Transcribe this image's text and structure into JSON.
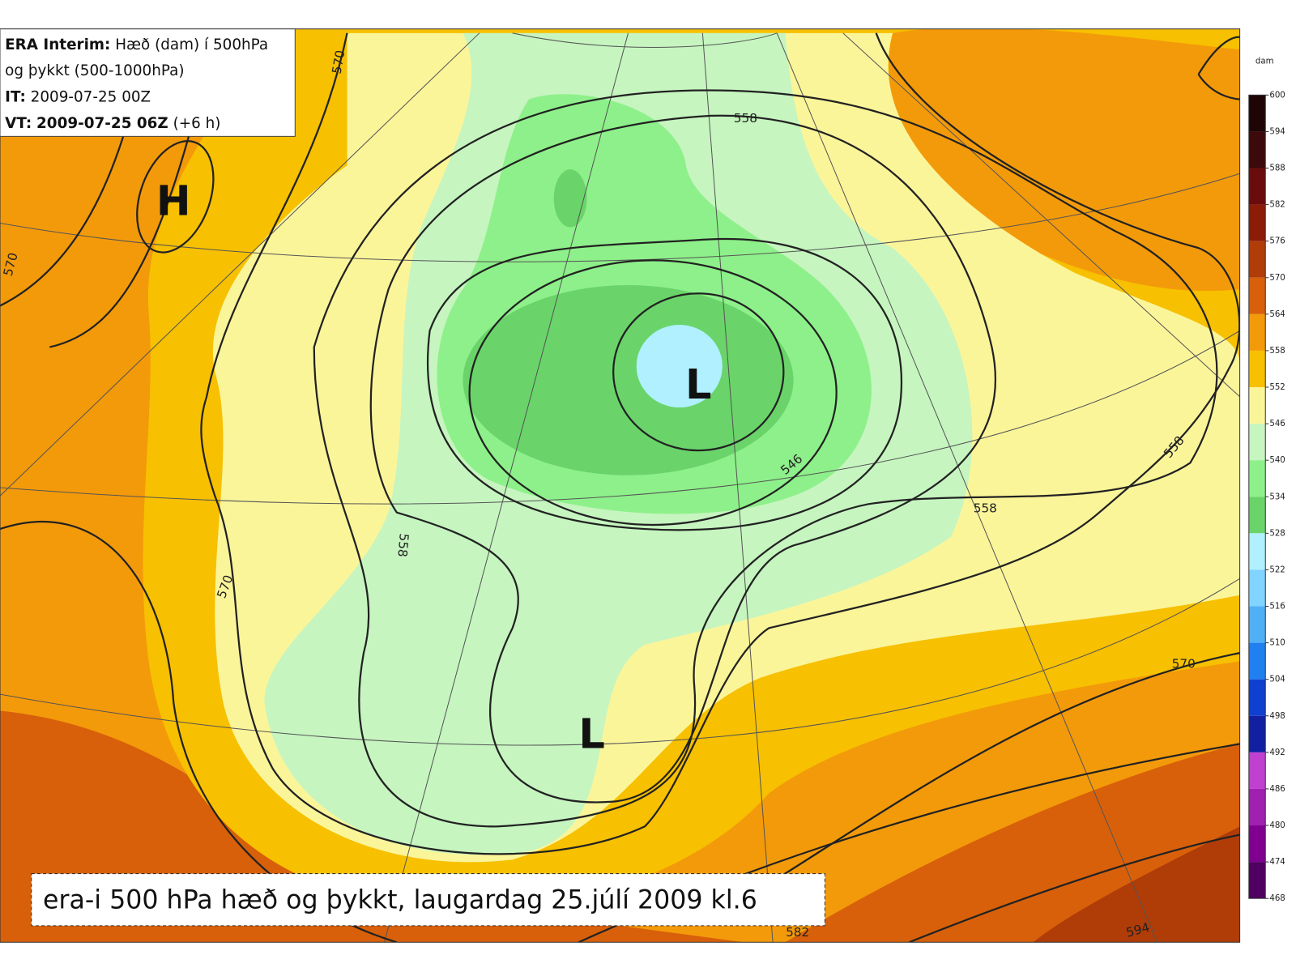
{
  "header": {
    "lines": [
      {
        "label": "ERA Interim:",
        "text": "Hæð (dam) í 500hPa"
      },
      {
        "text": "og þykkt (500-1000hPa)"
      },
      {
        "label": "IT:",
        "text": "2009-07-25 00Z"
      },
      {
        "label": "VT:",
        "text": "2009-07-25 06Z",
        "note": "(+6 h)"
      }
    ]
  },
  "colorbar": {
    "unit": "dam",
    "levels": [
      600,
      594,
      588,
      582,
      576,
      570,
      564,
      558,
      552,
      546,
      540,
      534,
      528,
      522,
      516,
      510,
      504,
      498,
      492,
      486,
      480,
      474,
      468
    ],
    "colors": [
      "#1e0606",
      "#3c0a0a",
      "#6a0c0c",
      "#8a1c08",
      "#b03c08",
      "#d8600a",
      "#f39a0a",
      "#f7c000",
      "#fbf59a",
      "#c6f5c0",
      "#8ef08a",
      "#6ad46a",
      "#b0f0ff",
      "#80d4ff",
      "#50b0f5",
      "#2080f0",
      "#1040d0",
      "#1020a0",
      "#c040d0",
      "#a020b0",
      "#800090",
      "#500060"
    ]
  },
  "pressure_centers": [
    "H",
    "L",
    "L"
  ],
  "contour_labels": [
    "570",
    "558",
    "570",
    "570",
    "558",
    "546",
    "558",
    "558",
    "570",
    "594",
    "582"
  ],
  "caption": "era-i 500 hPa hæð og þykkt, laugardag 25.júlí 2009 kl.6"
}
